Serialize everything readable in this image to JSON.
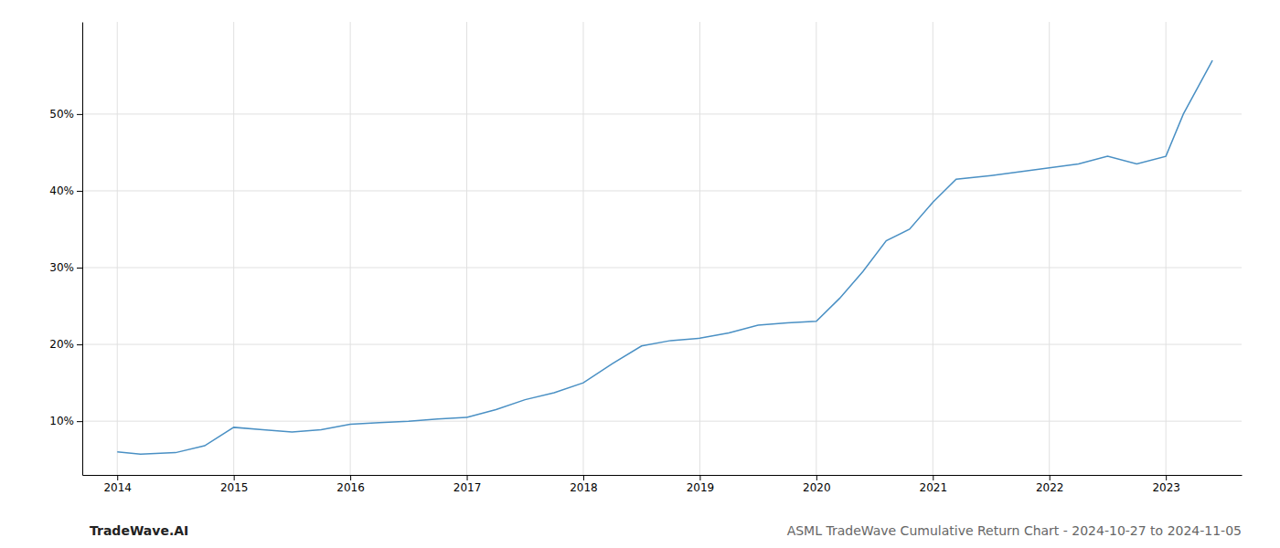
{
  "chart_data": {
    "type": "line",
    "title": "ASML TradeWave Cumulative Return Chart - 2024-10-27 to 2024-11-05",
    "annotations": [
      "TradeWave.AI"
    ],
    "x": [
      2014.0,
      2014.2,
      2014.5,
      2014.75,
      2015.0,
      2015.25,
      2015.5,
      2015.75,
      2016.0,
      2016.25,
      2016.5,
      2016.75,
      2017.0,
      2017.25,
      2017.5,
      2017.75,
      2018.0,
      2018.25,
      2018.5,
      2018.75,
      2019.0,
      2019.25,
      2019.5,
      2019.75,
      2020.0,
      2020.2,
      2020.4,
      2020.6,
      2020.8,
      2021.0,
      2021.2,
      2021.5,
      2021.75,
      2022.0,
      2022.25,
      2022.5,
      2022.75,
      2023.0,
      2023.15,
      2023.4
    ],
    "values": [
      6.0,
      5.7,
      5.9,
      6.8,
      9.2,
      8.9,
      8.6,
      8.9,
      9.6,
      9.8,
      10.0,
      10.3,
      10.5,
      11.5,
      12.8,
      13.7,
      15.0,
      17.5,
      19.8,
      20.5,
      20.8,
      21.5,
      22.5,
      22.8,
      23.0,
      26.0,
      29.5,
      33.5,
      35.0,
      38.5,
      41.5,
      42.0,
      42.5,
      43.0,
      43.5,
      44.5,
      43.5,
      44.5,
      50.0,
      57.0
    ],
    "color": "#4a90c4",
    "xlim": [
      2013.7,
      2023.65
    ],
    "xticks": [
      2014,
      2015,
      2016,
      2017,
      2018,
      2019,
      2020,
      2021,
      2022,
      2023
    ],
    "ylim": [
      3,
      62
    ],
    "yticks": [
      {
        "value": 10,
        "label": "10%"
      },
      {
        "value": 20,
        "label": "20%"
      },
      {
        "value": 30,
        "label": "30%"
      },
      {
        "value": 40,
        "label": "40%"
      },
      {
        "value": 50,
        "label": "50%"
      }
    ],
    "grid": true
  }
}
